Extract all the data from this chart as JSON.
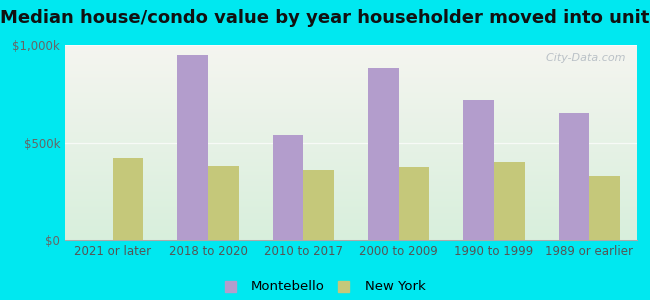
{
  "title": "Median house/condo value by year householder moved into unit",
  "categories": [
    "2021 or later",
    "2018 to 2020",
    "2010 to 2017",
    "2000 to 2009",
    "1990 to 1999",
    "1989 or earlier"
  ],
  "montebello": [
    0,
    950000,
    540000,
    880000,
    720000,
    650000
  ],
  "new_york": [
    420000,
    380000,
    360000,
    375000,
    400000,
    330000
  ],
  "montebello_color": "#b39dcc",
  "new_york_color": "#c5c87a",
  "background_outer": "#00e8f0",
  "background_chart_top": "#f5f5f0",
  "background_chart_bottom": "#d8efdc",
  "ylim": [
    0,
    1000000
  ],
  "ytick_labels": [
    "$0",
    "$500k",
    "$1,000k"
  ],
  "bar_width": 0.32,
  "watermark": "  City-Data.com",
  "legend_montebello": "Montebello",
  "legend_newyork": "New York",
  "title_fontsize": 13,
  "tick_fontsize": 8.5,
  "legend_fontsize": 9.5
}
